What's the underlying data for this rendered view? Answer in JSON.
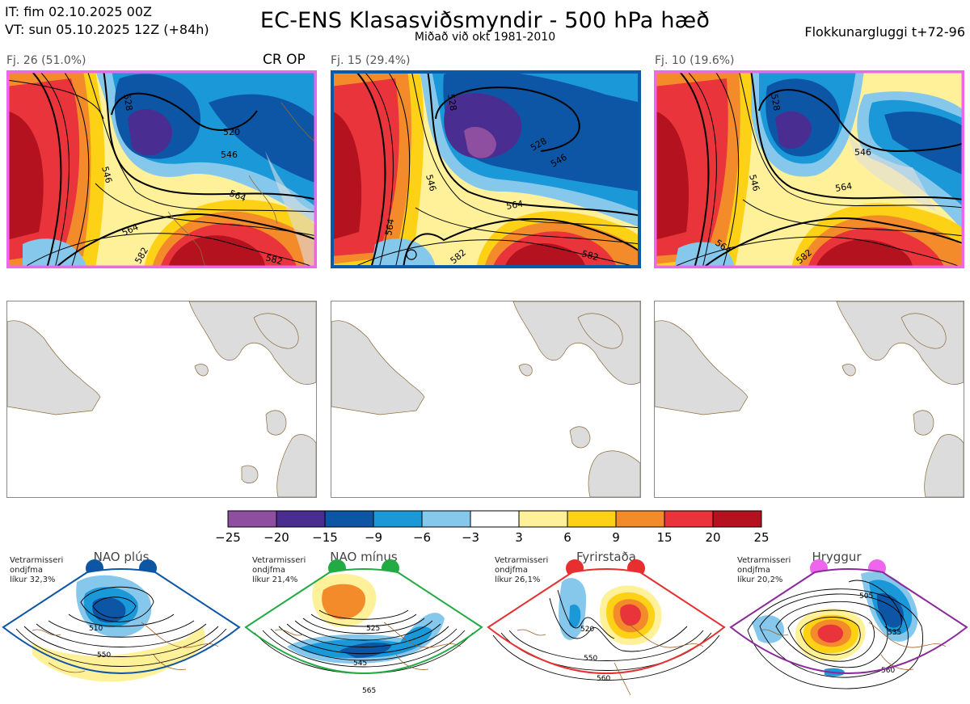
{
  "header": {
    "issue_time": "IT: fim 02.10.2025 00Z",
    "valid_time": "VT: sun 05.10.2025 12Z  (+84h)",
    "title": "EC-ENS Klasasviðsmyndir - 500 hPa hæð",
    "subtitle": "Miðað við okt 1981-2010",
    "window": "Flokkunargluggi t+72-96"
  },
  "clusters": [
    {
      "label": "Fj. 26 (51.0%)",
      "tag": "CR OP",
      "frame_color": "#ee66ee",
      "contours": [
        "528",
        "520",
        "546",
        "564",
        "546",
        "564",
        "582",
        "582"
      ]
    },
    {
      "label": "Fj. 15 (29.4%)",
      "tag": "",
      "frame_color": "#0a5aa8",
      "contours": [
        "528",
        "528",
        "546",
        "546",
        "564",
        "564",
        "582",
        "582"
      ]
    },
    {
      "label": "Fj. 10 (19.6%)",
      "tag": "",
      "frame_color": "#ee66ee",
      "contours": [
        "528",
        "546",
        "546",
        "564",
        "564",
        "582"
      ]
    }
  ],
  "colorbar": {
    "ticks": [
      "−25",
      "−20",
      "−15",
      "−9",
      "−6",
      "−3",
      "3",
      "6",
      "9",
      "15",
      "20",
      "25"
    ],
    "colors": [
      "#8e4fa0",
      "#4a2d91",
      "#0d56a6",
      "#1b98d8",
      "#86c7ec",
      "#ffffff",
      "#fff199",
      "#fdd116",
      "#f48b2b",
      "#e8343a",
      "#b4121f"
    ]
  },
  "regimes": [
    {
      "title": "NAO plús",
      "prob_lines": [
        "Vetrarmisseri",
        "ondjfma",
        "líkur 32,3%"
      ],
      "color": "#0d56a6",
      "contours": [
        "510",
        "550"
      ]
    },
    {
      "title": "NAO mínus",
      "prob_lines": [
        "Vetrarmisseri",
        "ondjfma",
        "líkur 21,4%"
      ],
      "color": "#22aa44",
      "contours": [
        "525",
        "545",
        "565"
      ]
    },
    {
      "title": "Fyrirstaða",
      "prob_lines": [
        "Vetrarmisseri",
        "ondjfma",
        "líkur 26,1%"
      ],
      "color": "#e63030",
      "contours": [
        "520",
        "550",
        "560"
      ]
    },
    {
      "title": "Hryggur",
      "prob_lines": [
        "Vetrarmisseri",
        "ondjfma",
        "líkur 20,2%"
      ],
      "color": "#ee66ee",
      "contours": [
        "505",
        "535",
        "560"
      ]
    }
  ]
}
